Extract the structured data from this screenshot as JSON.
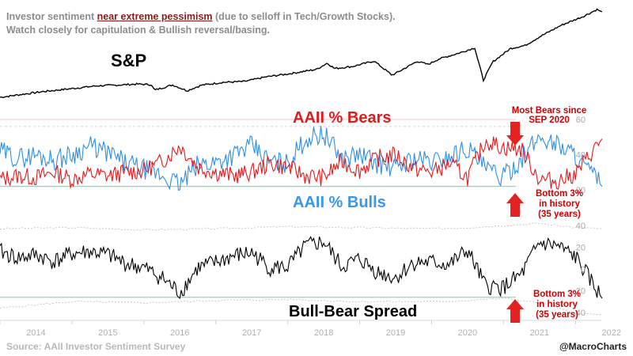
{
  "header": {
    "line1_prefix": "Investor sentiment ",
    "line1_highlight": "near extreme pessimism",
    "line1_suffix": " (due to selloff in Tech/Growth Stocks).",
    "line2": "Watch closely for capitulation & Bullish reversal/basing."
  },
  "footer": {
    "source": "Source: AAII Investor Sentiment Survey",
    "handle": "@MacroCharts"
  },
  "colors": {
    "sp": "#000000",
    "bears": "#e31a1c",
    "bulls": "#2e8fe6",
    "spread": "#000000",
    "threshold": "#8fd9b6",
    "band": "#c8c8c8",
    "ref_line": "#e8c8d0",
    "arrow": "#e52222",
    "annotation": "#cc0000",
    "tick": "#a8a8a8"
  },
  "chart_data": [
    {
      "type": "line",
      "title": "S&P",
      "x_range": [
        2013.5,
        2022.3
      ],
      "series": [
        {
          "name": "S&P",
          "x": [
            2013.5,
            2013.8,
            2014.1,
            2014.3,
            2014.6,
            2014.85,
            2015.1,
            2015.4,
            2015.6,
            2015.65,
            2015.9,
            2016.1,
            2016.3,
            2016.6,
            2016.9,
            2017.2,
            2017.5,
            2017.9,
            2018.05,
            2018.15,
            2018.4,
            2018.7,
            2018.95,
            2019.05,
            2019.3,
            2019.45,
            2019.6,
            2019.9,
            2020.1,
            2020.22,
            2020.35,
            2020.6,
            2020.8,
            2021.0,
            2021.3,
            2021.6,
            2021.8,
            2021.87
          ],
          "values": [
            1650,
            1750,
            1850,
            1900,
            1980,
            2050,
            2070,
            2110,
            2090,
            1900,
            2080,
            1880,
            2070,
            2170,
            2200,
            2360,
            2460,
            2620,
            2840,
            2650,
            2720,
            2910,
            2420,
            2550,
            2900,
            2790,
            2980,
            3200,
            3370,
            2240,
            2880,
            3350,
            3450,
            3750,
            4150,
            4450,
            4700,
            4620
          ]
        }
      ]
    },
    {
      "type": "line",
      "x_range": [
        2013.5,
        2022.3
      ],
      "y_range": [
        18,
        62
      ],
      "yticks": [
        20,
        40,
        60
      ],
      "series_labels": [
        "AAII % Bears",
        "AAII % Bulls"
      ],
      "reference_lines": [
        60,
        56
      ],
      "thresholds": {
        "bulls_bottom": 22
      },
      "annotations": [
        {
          "label": "Most Bears since SEP 2020",
          "value": 49
        },
        {
          "label": "Bottom 3% in history (35 years)",
          "value": 22
        }
      ],
      "series": [
        {
          "name": "AAII % Bears",
          "x": [
            2013.5,
            2013.75,
            2014.0,
            2014.25,
            2014.5,
            2014.75,
            2015.0,
            2015.25,
            2015.5,
            2015.75,
            2016.0,
            2016.25,
            2016.5,
            2016.75,
            2017.0,
            2017.25,
            2017.5,
            2017.75,
            2018.0,
            2018.25,
            2018.5,
            2018.75,
            2019.0,
            2019.25,
            2019.5,
            2019.75,
            2020.0,
            2020.25,
            2020.5,
            2020.75,
            2021.0,
            2021.25,
            2021.5,
            2021.87
          ],
          "values": [
            26,
            28,
            27,
            30,
            26,
            29,
            28,
            30,
            31,
            36,
            45,
            33,
            30,
            28,
            30,
            35,
            33,
            28,
            27,
            36,
            31,
            38,
            40,
            32,
            30,
            35,
            27,
            48,
            44,
            43,
            26,
            25,
            29,
            49
          ]
        },
        {
          "name": "AAII % Bulls",
          "x": [
            2013.5,
            2013.75,
            2014.0,
            2014.25,
            2014.5,
            2014.75,
            2015.0,
            2015.25,
            2015.5,
            2015.75,
            2016.0,
            2016.25,
            2016.5,
            2016.75,
            2017.0,
            2017.25,
            2017.5,
            2017.75,
            2018.0,
            2018.25,
            2018.5,
            2018.75,
            2019.0,
            2019.25,
            2019.5,
            2019.75,
            2020.0,
            2020.25,
            2020.5,
            2020.75,
            2021.0,
            2021.25,
            2021.5,
            2021.87
          ],
          "values": [
            42,
            38,
            40,
            37,
            40,
            45,
            41,
            35,
            32,
            28,
            23,
            34,
            36,
            40,
            45,
            36,
            35,
            49,
            52,
            38,
            40,
            35,
            32,
            38,
            36,
            39,
            44,
            32,
            27,
            38,
            50,
            46,
            40,
            22
          ]
        }
      ]
    },
    {
      "type": "line",
      "title": "Bull-Bear Spread",
      "x_range": [
        2013.5,
        2022.3
      ],
      "y_range": [
        -42,
        42
      ],
      "yticks": [
        40,
        20,
        0,
        -20,
        -40
      ],
      "thresholds": {
        "bottom": -26
      },
      "annotations": [
        {
          "label": "Bottom 3% in history (35 years)",
          "value": -27
        }
      ],
      "series": [
        {
          "name": "Bull-Bear Spread",
          "x": [
            2013.5,
            2013.75,
            2014.0,
            2014.25,
            2014.5,
            2014.75,
            2015.0,
            2015.25,
            2015.5,
            2015.75,
            2016.0,
            2016.25,
            2016.5,
            2016.75,
            2017.0,
            2017.25,
            2017.5,
            2017.75,
            2018.0,
            2018.25,
            2018.5,
            2018.75,
            2019.0,
            2019.25,
            2019.5,
            2019.75,
            2020.0,
            2020.25,
            2020.5,
            2020.75,
            2021.0,
            2021.25,
            2021.5,
            2021.87
          ],
          "values": [
            16,
            10,
            13,
            7,
            14,
            16,
            13,
            5,
            1,
            -8,
            -22,
            1,
            6,
            12,
            15,
            1,
            2,
            21,
            25,
            2,
            9,
            -3,
            -8,
            6,
            6,
            4,
            17,
            -16,
            -17,
            -5,
            24,
            21,
            11,
            -27
          ]
        },
        {
          "name": "upper band",
          "x": [
            2013.5,
            2014.5,
            2015.5,
            2016.5,
            2017.5,
            2018.5,
            2019.5,
            2020.0,
            2020.5,
            2021.0,
            2021.5,
            2021.87
          ],
          "values": [
            37,
            38,
            36,
            37,
            39,
            38,
            37,
            38,
            40,
            42,
            38,
            37
          ]
        },
        {
          "name": "lower band",
          "x": [
            2013.5,
            2014.5,
            2015.5,
            2016.5,
            2017.5,
            2018.5,
            2019.5,
            2020.0,
            2020.5,
            2021.0,
            2021.5,
            2021.87
          ],
          "values": [
            -36,
            -30,
            -31,
            -29,
            -28,
            -30,
            -30,
            -29,
            -27,
            -31,
            -41,
            -42
          ]
        }
      ]
    }
  ],
  "x_axis": {
    "ticks": [
      "2014",
      "2015",
      "2016",
      "2017",
      "2018",
      "2019",
      "2020",
      "2021",
      "2022"
    ]
  },
  "labels": {
    "sp": "S&P",
    "bears": "AAII % Bears",
    "bulls": "AAII % Bulls",
    "spread": "Bull-Bear Spread",
    "most_bears_line1": "Most Bears since",
    "most_bears_line2": "SEP 2020",
    "bottom_a_line1": "Bottom 3%",
    "bottom_a_line2": "in history",
    "bottom_a_line3": "(35 years)",
    "bottom_b_line1": "Bottom 3%",
    "bottom_b_line2": "in history",
    "bottom_b_line3": "(35 years)"
  }
}
